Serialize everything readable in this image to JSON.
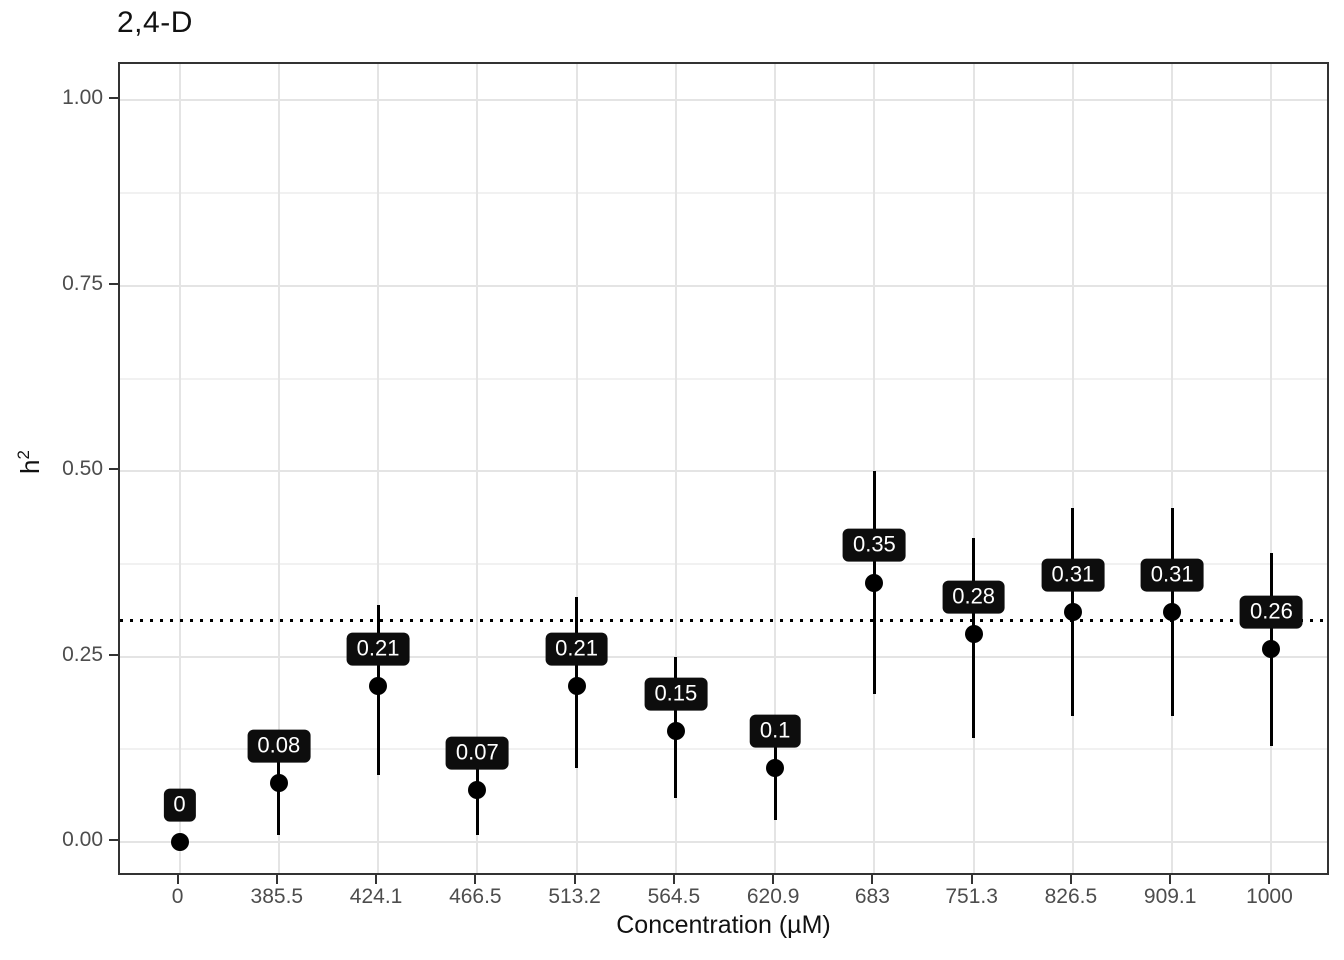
{
  "chart_data": {
    "type": "scatter",
    "title": "2,4-D",
    "xlabel": "Concentration (µM)",
    "ylabel": "h²",
    "ylabel_base": "h",
    "ylabel_sup": "2",
    "x_categories": [
      "0",
      "385.5",
      "424.1",
      "466.5",
      "513.2",
      "564.5",
      "620.9",
      "683",
      "751.3",
      "826.5",
      "909.1",
      "1000"
    ],
    "points": [
      {
        "x": "0",
        "y": 0.0,
        "lower": 0.0,
        "upper": 0.0,
        "label": "0"
      },
      {
        "x": "385.5",
        "y": 0.08,
        "lower": 0.01,
        "upper": 0.14,
        "label": "0.08"
      },
      {
        "x": "424.1",
        "y": 0.21,
        "lower": 0.09,
        "upper": 0.32,
        "label": "0.21"
      },
      {
        "x": "466.5",
        "y": 0.07,
        "lower": 0.01,
        "upper": 0.13,
        "label": "0.07"
      },
      {
        "x": "513.2",
        "y": 0.21,
        "lower": 0.1,
        "upper": 0.33,
        "label": "0.21"
      },
      {
        "x": "564.5",
        "y": 0.15,
        "lower": 0.06,
        "upper": 0.25,
        "label": "0.15"
      },
      {
        "x": "620.9",
        "y": 0.1,
        "lower": 0.03,
        "upper": 0.17,
        "label": "0.1"
      },
      {
        "x": "683",
        "y": 0.35,
        "lower": 0.2,
        "upper": 0.5,
        "label": "0.35"
      },
      {
        "x": "751.3",
        "y": 0.28,
        "lower": 0.14,
        "upper": 0.41,
        "label": "0.28"
      },
      {
        "x": "826.5",
        "y": 0.31,
        "lower": 0.17,
        "upper": 0.45,
        "label": "0.31"
      },
      {
        "x": "909.1",
        "y": 0.31,
        "lower": 0.17,
        "upper": 0.45,
        "label": "0.31"
      },
      {
        "x": "1000",
        "y": 0.26,
        "lower": 0.13,
        "upper": 0.39,
        "label": "0.26"
      }
    ],
    "y_ticks": [
      {
        "value": 0.0,
        "label": "0.00"
      },
      {
        "value": 0.25,
        "label": "0.25"
      },
      {
        "value": 0.5,
        "label": "0.50"
      },
      {
        "value": 0.75,
        "label": "0.75"
      },
      {
        "value": 1.0,
        "label": "1.00"
      }
    ],
    "y_minor_gridlines": [
      0.125,
      0.375,
      0.625,
      0.875
    ],
    "ylim": [
      -0.047,
      1.049
    ],
    "reference_line": {
      "y": 0.3,
      "style": "dotted",
      "color": "#000000"
    },
    "grid": {
      "show": true,
      "major_color": "#e4e4e4",
      "minor_color": "#f1f1f1"
    },
    "legend": "none",
    "colors": {
      "point": "#000000",
      "error_bar": "#000000",
      "label_bg": "#0d0d0d",
      "label_text": "#ffffff",
      "panel_border": "#333333",
      "axis_text": "#4d4d4d",
      "background": "#ffffff"
    }
  }
}
